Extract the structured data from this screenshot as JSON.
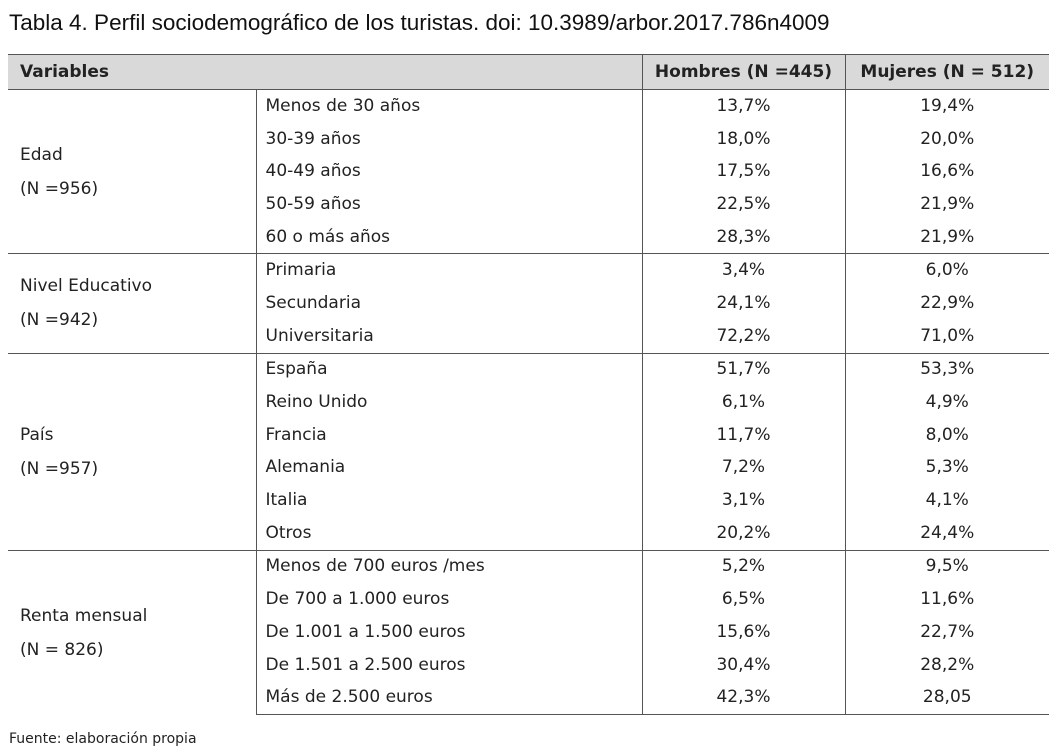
{
  "title": "Tabla 4. Perfil sociodemográfico de los turistas. doi: 10.3989/arbor.2017.786n4009",
  "headers": {
    "variables": "Variables",
    "hombres": "Hombres (N =445)",
    "mujeres": "Mujeres (N = 512)"
  },
  "groups": [
    {
      "name": "Edad",
      "n": "(N =956)",
      "rows": [
        {
          "label": "Menos de 30 años",
          "h": "13,7%",
          "m": "19,4%"
        },
        {
          "label": "30-39 años",
          "h": "18,0%",
          "m": "20,0%"
        },
        {
          "label": "40-49 años",
          "h": "17,5%",
          "m": "16,6%"
        },
        {
          "label": "50-59 años",
          "h": "22,5%",
          "m": "21,9%"
        },
        {
          "label": "60 o más años",
          "h": "28,3%",
          "m": "21,9%"
        }
      ]
    },
    {
      "name": "Nivel Educativo",
      "n": "(N =942)",
      "rows": [
        {
          "label": "Primaria",
          "h": "3,4%",
          "m": "6,0%"
        },
        {
          "label": "Secundaria",
          "h": "24,1%",
          "m": "22,9%"
        },
        {
          "label": "Universitaria",
          "h": "72,2%",
          "m": "71,0%"
        }
      ]
    },
    {
      "name": "País",
      "n": "(N =957)",
      "rows": [
        {
          "label": "España",
          "h": "51,7%",
          "m": "53,3%"
        },
        {
          "label": "Reino Unido",
          "h": "6,1%",
          "m": "4,9%"
        },
        {
          "label": "Francia",
          "h": "11,7%",
          "m": "8,0%"
        },
        {
          "label": "Alemania",
          "h": "7,2%",
          "m": "5,3%"
        },
        {
          "label": "Italia",
          "h": "3,1%",
          "m": "4,1%"
        },
        {
          "label": "Otros",
          "h": "20,2%",
          "m": "24,4%"
        }
      ]
    },
    {
      "name": "Renta mensual",
      "n": "(N = 826)",
      "rows": [
        {
          "label": "Menos de 700 euros /mes",
          "h": "5,2%",
          "m": "9,5%"
        },
        {
          "label": "De 700 a 1.000 euros",
          "h": "6,5%",
          "m": "11,6%"
        },
        {
          "label": "De 1.001 a 1.500 euros",
          "h": "15,6%",
          "m": "22,7%"
        },
        {
          "label": "De 1.501 a 2.500 euros",
          "h": "30,4%",
          "m": "28,2%"
        },
        {
          "label": "Más de 2.500 euros",
          "h": "42,3%",
          "m": "28,05"
        }
      ]
    }
  ],
  "source": "Fuente: elaboración propia"
}
